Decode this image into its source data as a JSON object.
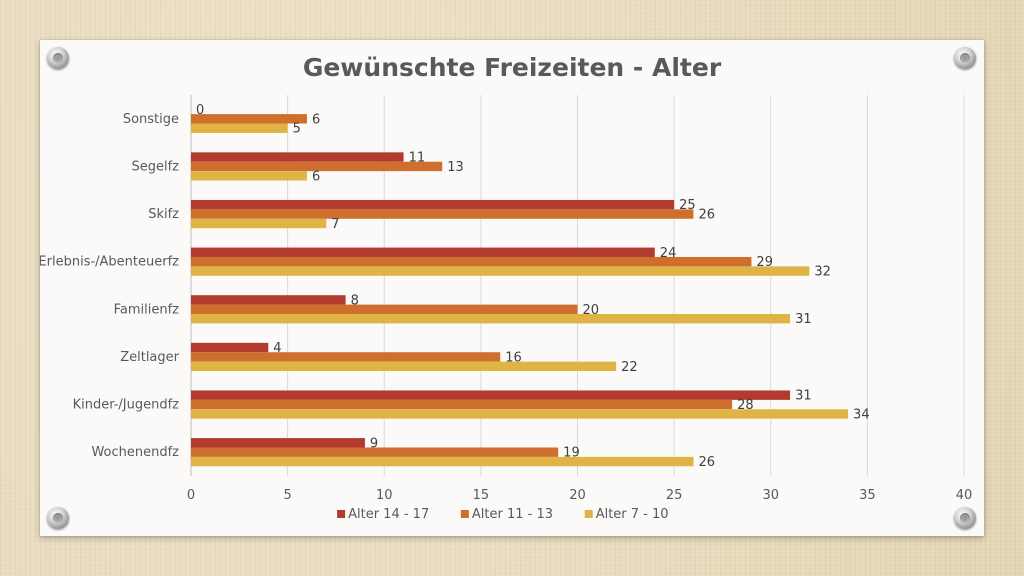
{
  "chart_data": {
    "type": "bar",
    "orientation": "horizontal",
    "title": "Gewünschte Freizeiten - Alter",
    "categories": [
      "Sonstige",
      "Segelfz",
      "Skifz",
      "Erlebnis-/Abenteuerfz",
      "Familienfz",
      "Zeltlager",
      "Kinder-/Jugendfz",
      "Wochenendfz"
    ],
    "series": [
      {
        "name": "Alter 14 - 17",
        "color": "#b23a2e",
        "values": [
          0,
          11,
          25,
          24,
          8,
          4,
          31,
          9
        ]
      },
      {
        "name": "Alter 11 - 13",
        "color": "#cf6f2e",
        "values": [
          6,
          13,
          26,
          29,
          20,
          16,
          28,
          19
        ]
      },
      {
        "name": "Alter 7 - 10",
        "color": "#dfb445",
        "values": [
          5,
          6,
          7,
          32,
          31,
          22,
          34,
          26
        ]
      }
    ],
    "xlim": [
      0,
      40
    ],
    "xticks": [
      0,
      5,
      10,
      15,
      20,
      25,
      30,
      35,
      40
    ],
    "grid": true,
    "legend_position": "bottom"
  }
}
